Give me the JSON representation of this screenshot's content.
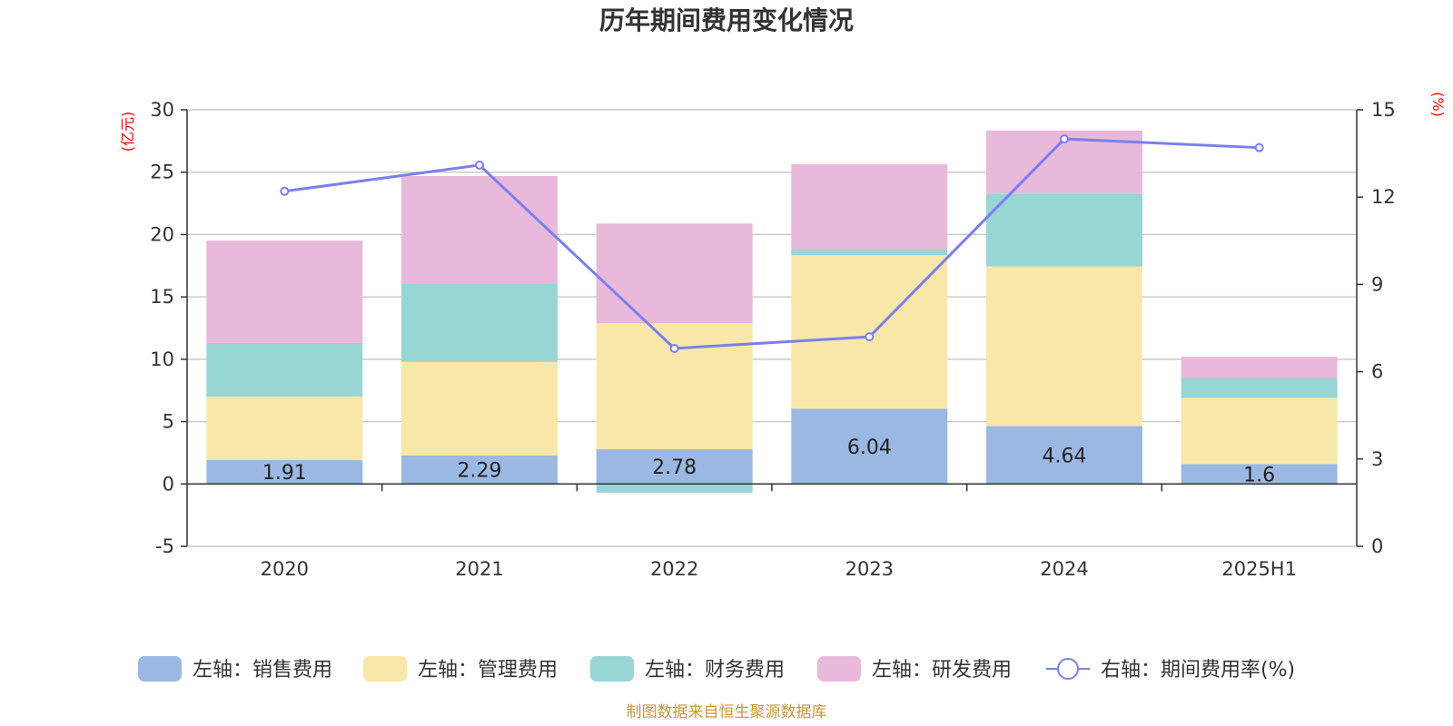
{
  "chart_data": {
    "type": "bar",
    "title": "历年期间费用变化情况",
    "categories": [
      "2020",
      "2021",
      "2022",
      "2023",
      "2024",
      "2025H1"
    ],
    "series": [
      {
        "name": "左轴：销售费用",
        "kind": "bar",
        "axis": "left",
        "color": "#9bb8e3",
        "values": [
          1.91,
          2.29,
          2.78,
          6.04,
          4.64,
          1.6
        ],
        "labels": [
          "1.91",
          "2.29",
          "2.78",
          "6.04",
          "4.64",
          "1.6"
        ]
      },
      {
        "name": "左轴：管理费用",
        "kind": "bar",
        "axis": "left",
        "color": "#f8e7a8",
        "values": [
          5.1,
          7.5,
          10.1,
          12.3,
          12.8,
          5.3
        ]
      },
      {
        "name": "左轴：财务费用",
        "kind": "bar",
        "axis": "left",
        "color": "#98d5d5",
        "values": [
          4.3,
          6.3,
          -0.7,
          0.5,
          5.8,
          1.6
        ]
      },
      {
        "name": "左轴：研发费用",
        "kind": "bar",
        "axis": "left",
        "color": "#e8b9da",
        "values": [
          8.2,
          8.6,
          8.0,
          6.8,
          5.1,
          1.7
        ]
      },
      {
        "name": "右轴：期间费用率(%)",
        "kind": "line",
        "axis": "right",
        "color": "#7b7ef0",
        "values": [
          12.2,
          13.1,
          6.8,
          7.2,
          14.0,
          13.7
        ]
      }
    ],
    "left_axis": {
      "unit": "(亿元)",
      "min": -5,
      "max": 30,
      "ticks": [
        -5,
        0,
        5,
        10,
        15,
        20,
        25,
        30
      ]
    },
    "right_axis": {
      "unit": "(%)",
      "min": 0,
      "max": 15,
      "ticks": [
        0,
        3,
        6,
        9,
        12,
        15
      ]
    },
    "grid": true,
    "legend_position": "bottom",
    "source": "制图数据来自恒生聚源数据库"
  }
}
